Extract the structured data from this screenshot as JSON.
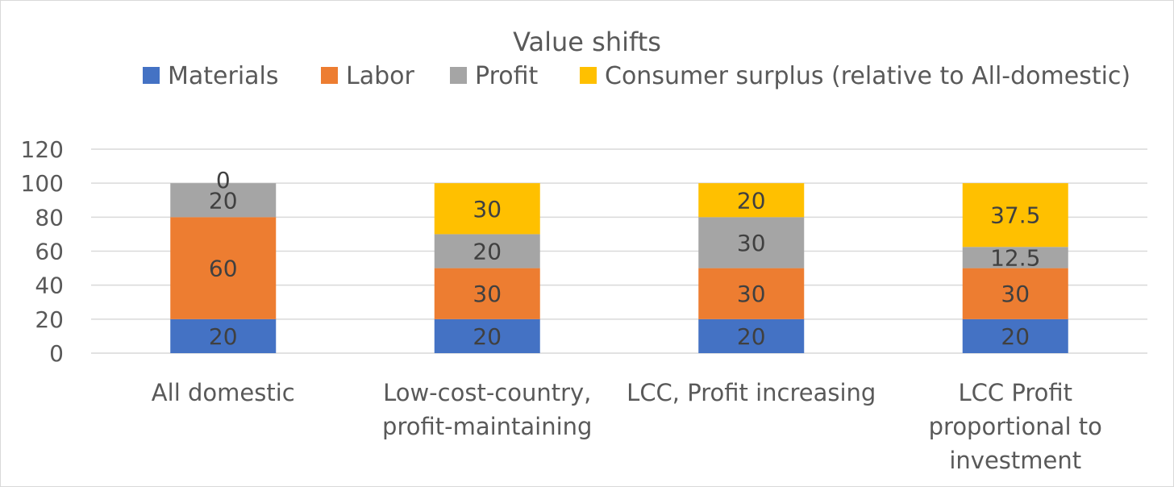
{
  "chart_data": {
    "type": "bar",
    "stacked": true,
    "title": "Value shifts",
    "xlabel": "",
    "ylabel": "",
    "ylim": [
      0,
      120
    ],
    "yticks": [
      0,
      20,
      40,
      60,
      80,
      100,
      120
    ],
    "ytick_labels": [
      "0",
      "20",
      "40",
      "60",
      "80",
      "100",
      "120"
    ],
    "grid": true,
    "legend_position": "top",
    "categories": [
      [
        "All domestic"
      ],
      [
        "Low-cost-country,",
        "profit-maintaining"
      ],
      [
        "LCC, Profit increasing"
      ],
      [
        "LCC Profit",
        "proportional to",
        "investment"
      ]
    ],
    "series": [
      {
        "name": "Materials",
        "color": "#4472c4",
        "values": [
          20,
          20,
          20,
          20
        ],
        "labels": [
          "20",
          "20",
          "20",
          "20"
        ]
      },
      {
        "name": "Labor",
        "color": "#ed7d31",
        "values": [
          60,
          30,
          30,
          30
        ],
        "labels": [
          "60",
          "30",
          "30",
          "30"
        ]
      },
      {
        "name": "Profit",
        "color": "#a5a5a5",
        "values": [
          20,
          20,
          30,
          12.5
        ],
        "labels": [
          "20",
          "20",
          "30",
          "12.5"
        ]
      },
      {
        "name": "Consumer surplus (relative to All-domestic)",
        "color": "#ffc000",
        "values": [
          0,
          30,
          20,
          37.5
        ],
        "labels": [
          "0",
          "30",
          "20",
          "37.5"
        ]
      }
    ]
  }
}
